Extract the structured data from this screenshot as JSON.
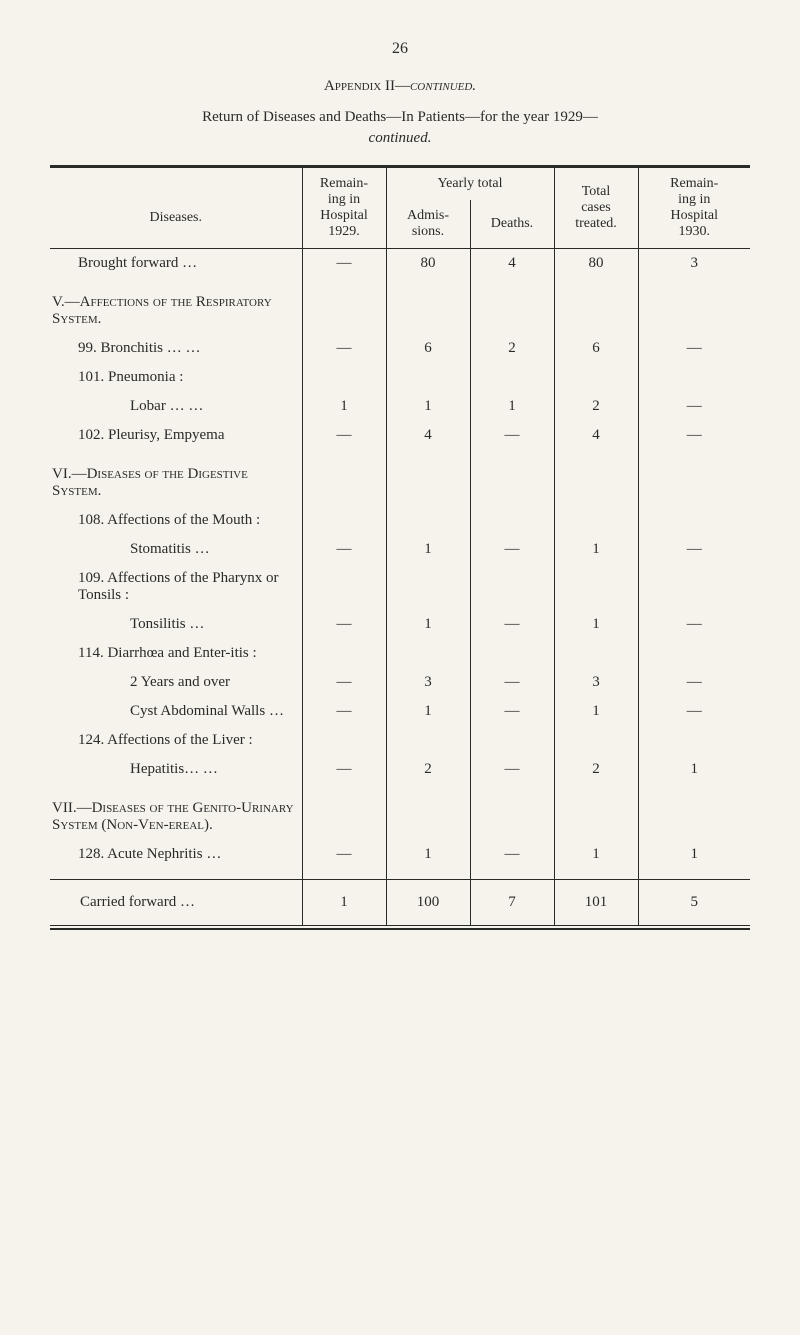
{
  "page_number": "26",
  "appendix_title": "Appendix II—",
  "appendix_title_italic": "continued.",
  "subtitle": "Return of Diseases and Deaths—In Patients—for the year 1929—",
  "subtitle_cont": "continued.",
  "headers": {
    "diseases": "Diseases.",
    "remain_in": "Remain-\ning in\nHospital\n1929.",
    "yearly_total": "Yearly total",
    "admissions": "Admis-\nsions.",
    "deaths": "Deaths.",
    "total_cases": "Total\ncases\ntreated.",
    "remain_out": "Remain-\ning in\nHospital\n1930."
  },
  "rows": [
    {
      "disease": "Brought forward …",
      "remain": "—",
      "admis": "80",
      "deaths": "4",
      "total": "80",
      "remain2": "3",
      "indent": 1
    },
    {
      "spacer": true
    },
    {
      "disease": "V.—Affections of the Respiratory System.",
      "remain": "",
      "admis": "",
      "deaths": "",
      "total": "",
      "remain2": "",
      "section": true
    },
    {
      "disease": "99. Bronchitis …    …",
      "remain": "—",
      "admis": "6",
      "deaths": "2",
      "total": "6",
      "remain2": "—",
      "indent": 1
    },
    {
      "disease": "101. Pneumonia :",
      "remain": "",
      "admis": "",
      "deaths": "",
      "total": "",
      "remain2": "",
      "indent": 1
    },
    {
      "disease": "Lobar    …    …",
      "remain": "1",
      "admis": "1",
      "deaths": "1",
      "total": "2",
      "remain2": "—",
      "indent": 3
    },
    {
      "disease": "102. Pleurisy, Empyema",
      "remain": "—",
      "admis": "4",
      "deaths": "—",
      "total": "4",
      "remain2": "—",
      "indent": 1
    },
    {
      "spacer": true
    },
    {
      "disease": "VI.—Diseases of the Digestive System.",
      "remain": "",
      "admis": "",
      "deaths": "",
      "total": "",
      "remain2": "",
      "section": true
    },
    {
      "disease": "108. Affections of the Mouth :",
      "remain": "",
      "admis": "",
      "deaths": "",
      "total": "",
      "remain2": "",
      "indent": 1
    },
    {
      "disease": "Stomatitis    …",
      "remain": "—",
      "admis": "1",
      "deaths": "—",
      "total": "1",
      "remain2": "—",
      "indent": 3
    },
    {
      "disease": "109. Affections of the Pharynx or Tonsils :",
      "remain": "",
      "admis": "",
      "deaths": "",
      "total": "",
      "remain2": "",
      "indent": 1
    },
    {
      "disease": "Tonsilitis    …",
      "remain": "—",
      "admis": "1",
      "deaths": "—",
      "total": "1",
      "remain2": "—",
      "indent": 3
    },
    {
      "disease": "114. Diarrhœa and Enter-itis :",
      "remain": "",
      "admis": "",
      "deaths": "",
      "total": "",
      "remain2": "",
      "indent": 1
    },
    {
      "disease": "2 Years and over",
      "remain": "—",
      "admis": "3",
      "deaths": "—",
      "total": "3",
      "remain2": "—",
      "indent": 3
    },
    {
      "disease": "Cyst Abdominal Walls    …",
      "remain": "—",
      "admis": "1",
      "deaths": "—",
      "total": "1",
      "remain2": "—",
      "indent": 3
    },
    {
      "disease": "124. Affections of the Liver :",
      "remain": "",
      "admis": "",
      "deaths": "",
      "total": "",
      "remain2": "",
      "indent": 1
    },
    {
      "disease": "Hepatitis…    …",
      "remain": "—",
      "admis": "2",
      "deaths": "—",
      "total": "2",
      "remain2": "1",
      "indent": 3
    },
    {
      "spacer": true
    },
    {
      "disease": "VII.—Diseases of the Genito-Urinary System (Non-Ven-ereal).",
      "remain": "",
      "admis": "",
      "deaths": "",
      "total": "",
      "remain2": "",
      "section": true
    },
    {
      "disease": "128. Acute Nephritis …",
      "remain": "—",
      "admis": "1",
      "deaths": "—",
      "total": "1",
      "remain2": "1",
      "indent": 1
    },
    {
      "spacer": true
    }
  ],
  "footer": {
    "label": "Carried forward   …",
    "remain": "1",
    "admis": "100",
    "deaths": "7",
    "total": "101",
    "remain2": "5"
  }
}
